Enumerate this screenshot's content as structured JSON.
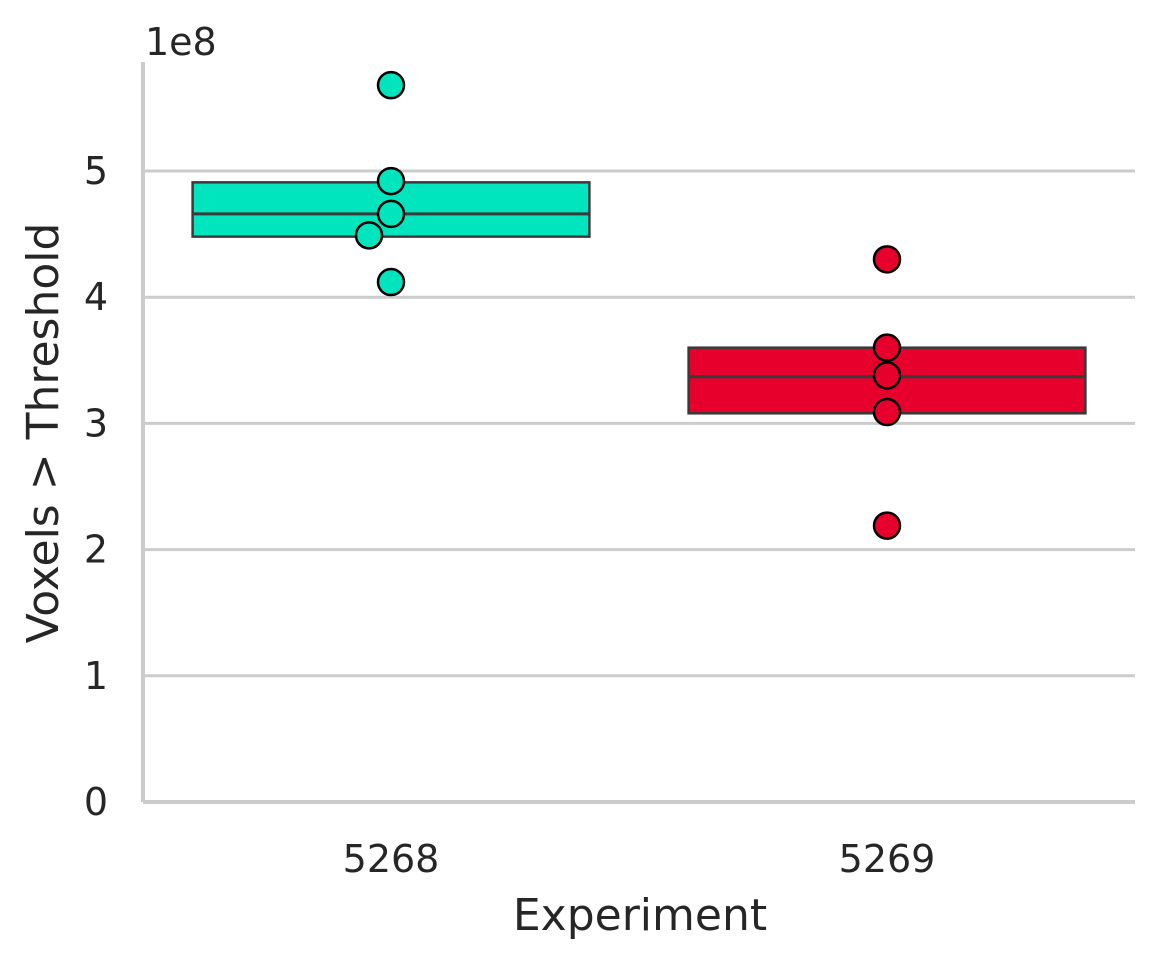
{
  "chart_data": {
    "type": "box",
    "xlabel": "Experiment",
    "ylabel": "Voxels > Threshold",
    "y_multiplier_label": "1e8",
    "yscale": 100000000,
    "ylim": [
      0,
      5.85
    ],
    "yticks": [
      0,
      1,
      2,
      3,
      4,
      5
    ],
    "ytick_labels": [
      "0",
      "1",
      "2",
      "3",
      "4",
      "5"
    ],
    "grid": "horizontal",
    "categories": [
      "5268",
      "5269"
    ],
    "groups": [
      {
        "category": "5268",
        "color": "#00e5be",
        "q1": 4.48,
        "median": 4.66,
        "q3": 4.91,
        "points": [
          5.68,
          4.92,
          4.66,
          4.49,
          4.12
        ]
      },
      {
        "category": "5269",
        "color": "#e8002d",
        "q1": 3.08,
        "median": 3.37,
        "q3": 3.6,
        "points": [
          4.3,
          3.6,
          3.38,
          3.09,
          2.19
        ]
      }
    ]
  }
}
